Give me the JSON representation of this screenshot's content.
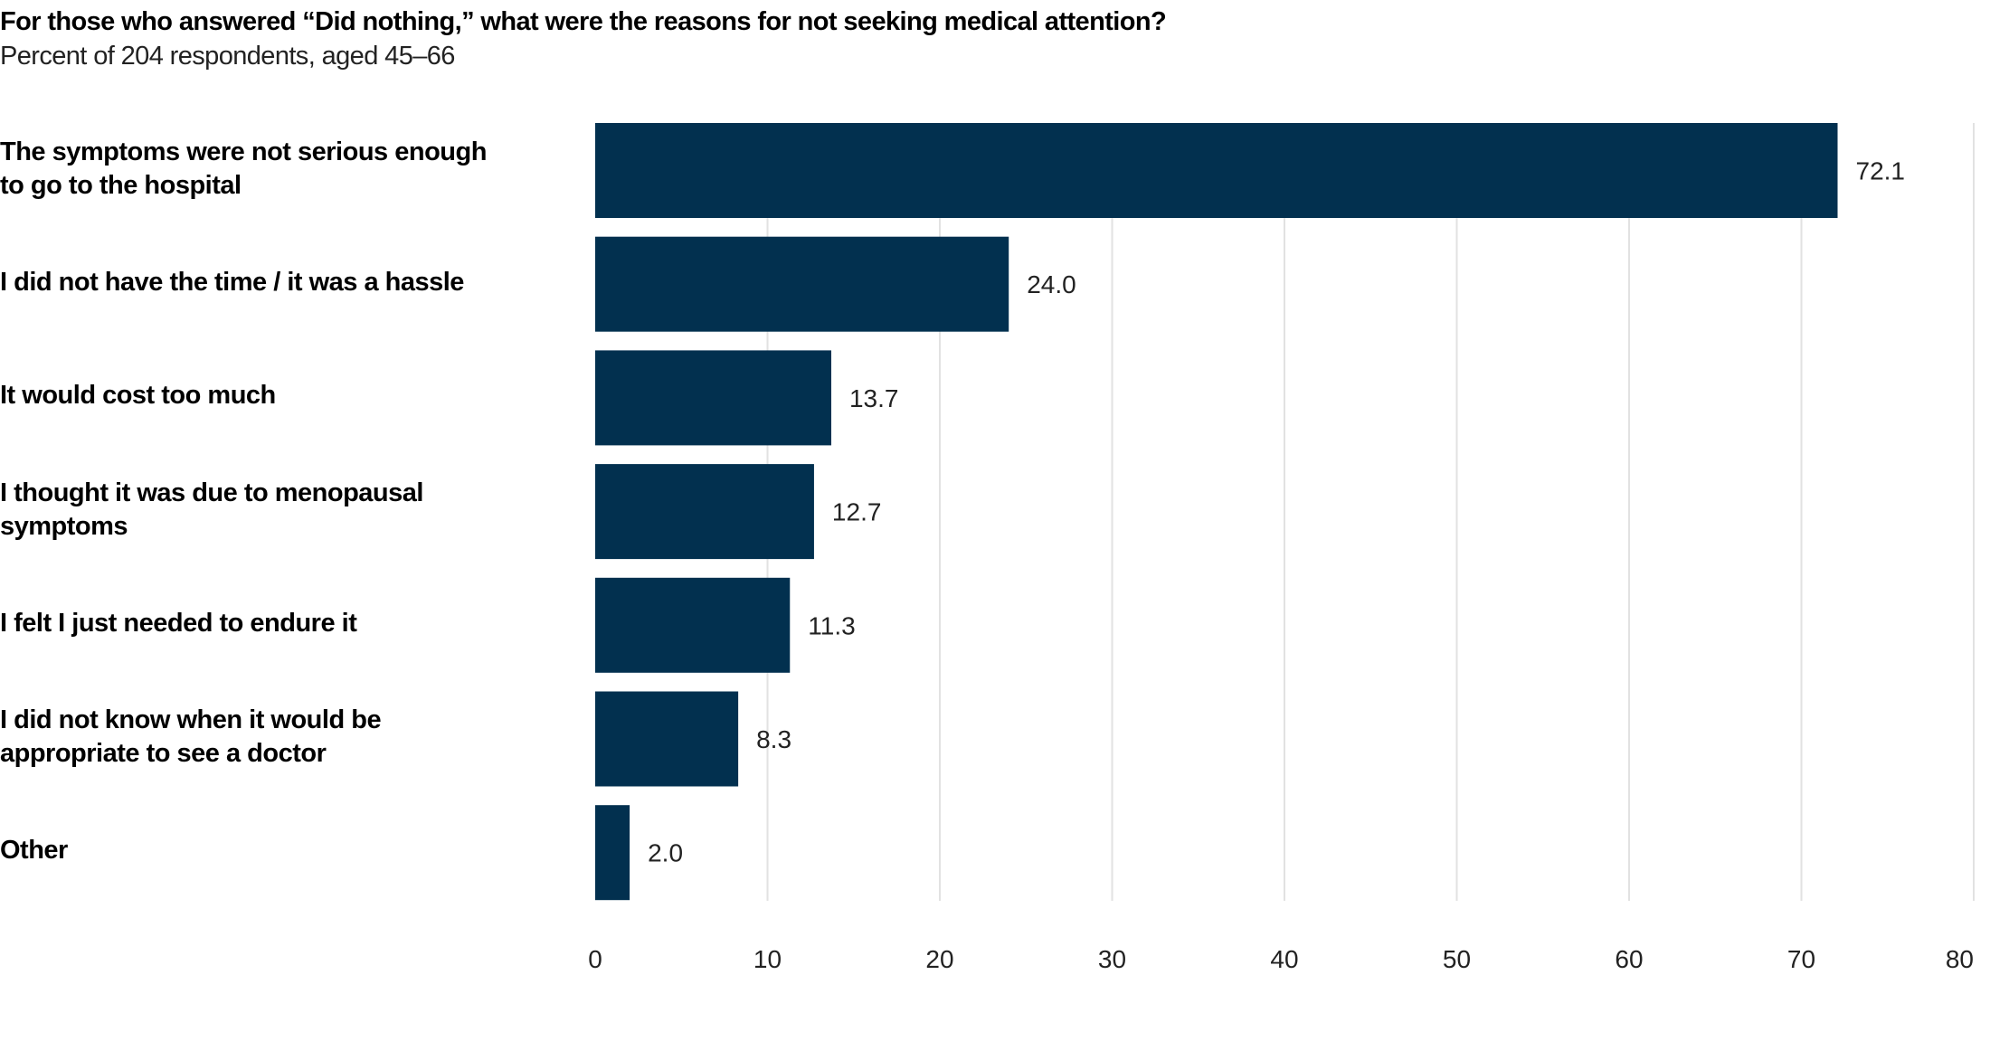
{
  "chart_data": {
    "type": "bar",
    "orientation": "horizontal",
    "title": "For those who answered “Did nothing,” what were the reasons for not seeking medical attention?",
    "subtitle": "Percent of 204 respondents, aged 45–66",
    "categories": [
      "The symptoms were not serious enough to go to the hospital",
      "I did not have the time / it was a hassle",
      "It would cost too much",
      "I thought it was due to menopausal symptoms",
      "I felt I just needed to endure it",
      "I did not know when it would be appropriate to see a doctor",
      "Other"
    ],
    "category_lines": [
      [
        "The symptoms were not serious enough",
        "to go to the hospital"
      ],
      [
        "I did not have the time / it was a hassle"
      ],
      [
        "It would cost too much"
      ],
      [
        "I thought it was due to menopausal",
        "symptoms"
      ],
      [
        "I felt I just needed to endure it"
      ],
      [
        "I did not know when it would be",
        "appropriate to see a doctor"
      ],
      [
        "Other"
      ]
    ],
    "values": [
      72.1,
      24.0,
      13.7,
      12.7,
      11.3,
      8.3,
      2.0
    ],
    "value_labels": [
      "72.1",
      "24.0",
      "13.7",
      "12.7",
      "11.3",
      "8.3",
      "2.0"
    ],
    "xlim": [
      0,
      80
    ],
    "xticks": [
      "0",
      "10",
      "20",
      "30",
      "40",
      "50",
      "60",
      "70",
      "80"
    ],
    "grid": "vertical",
    "bar_color": "#02304f",
    "grid_color": "#e2e2e2"
  }
}
